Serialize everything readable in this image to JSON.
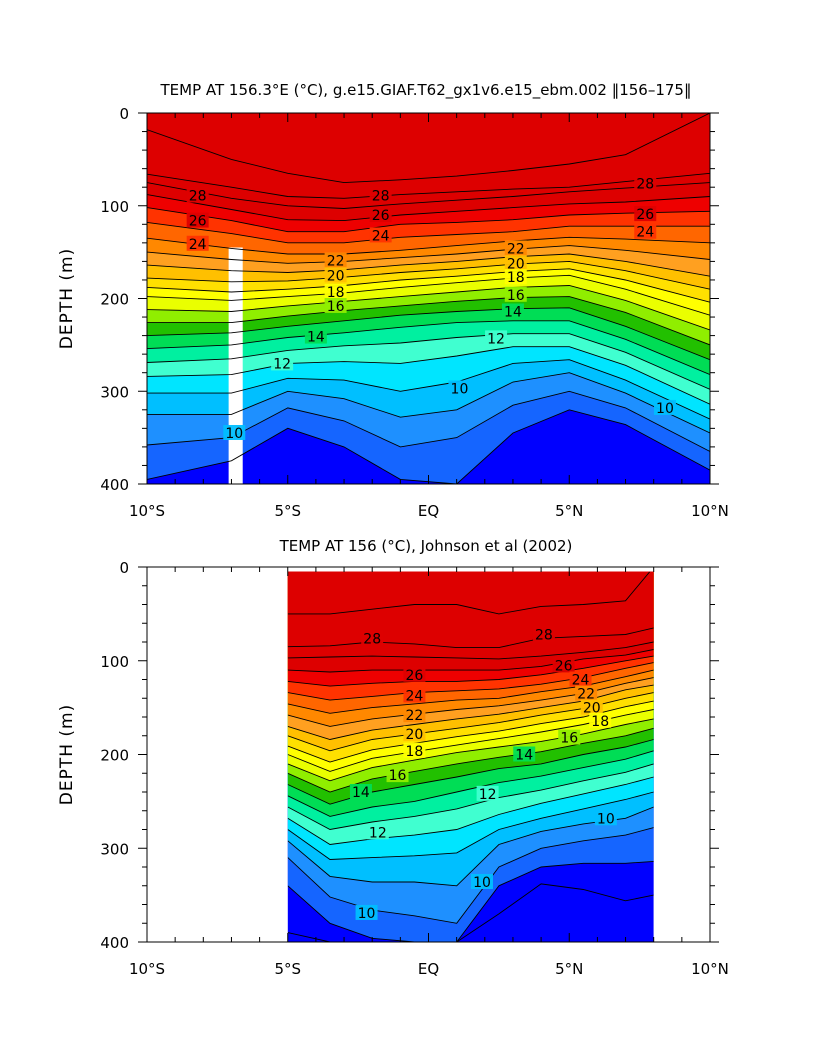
{
  "colors": {
    "bands": [
      "#0000ff",
      "#1565ff",
      "#1e90ff",
      "#00bfff",
      "#00e5ff",
      "#40ffd0",
      "#00f0a0",
      "#00dd55",
      "#22c000",
      "#90ee00",
      "#eaff00",
      "#ffff00",
      "#ffe000",
      "#ffc000",
      "#ffa020",
      "#ff8800",
      "#ff6600",
      "#ff3300",
      "#ee0000",
      "#dd0000"
    ],
    "gap": "#ffffff",
    "line": "#000000"
  },
  "chart_data": [
    {
      "type": "contour",
      "title": "TEMP AT 156.3°E (°C), g.e15.GIAF.T62_gx1v6.e15_ebm.002 ‖156–175‖",
      "ylabel": "DEPTH (m)",
      "xlim": [
        -10,
        10
      ],
      "ylim": [
        400,
        0
      ],
      "x_ticks": [
        -10,
        -5,
        0,
        5,
        10
      ],
      "x_tick_labels": [
        "10°S",
        "5°S",
        "EQ",
        "5°N",
        "10°N"
      ],
      "y_ticks": [
        0,
        100,
        200,
        300,
        400
      ],
      "y_tick_labels": [
        "0",
        "100",
        "200",
        "300",
        "400"
      ],
      "data_xrange": [
        -10,
        10
      ],
      "gap_x": [
        -7.1,
        -6.6
      ],
      "gap_depth_top": 145,
      "levels": [
        7,
        8,
        9,
        10,
        11,
        12,
        13,
        14,
        15,
        16,
        17,
        18,
        19,
        20,
        21,
        22,
        23,
        24,
        25,
        26,
        27,
        28,
        29
      ],
      "x": [
        -10,
        -7,
        -5,
        -3,
        -1,
        1,
        3,
        5,
        7,
        10
      ],
      "isotherms": [
        {
          "temp": 29,
          "depth": [
            18,
            50,
            65,
            75,
            72,
            68,
            62,
            55,
            45,
            0
          ]
        },
        {
          "temp": 28,
          "depth": [
            66,
            80,
            90,
            92,
            88,
            85,
            82,
            80,
            74,
            65
          ]
        },
        {
          "temp": 27,
          "depth": [
            75,
            92,
            100,
            103,
            98,
            94,
            90,
            85,
            81,
            75
          ]
        },
        {
          "temp": 26,
          "depth": [
            88,
            104,
            115,
            116,
            110,
            106,
            102,
            98,
            96,
            90
          ]
        },
        {
          "temp": 25,
          "depth": [
            102,
            116,
            128,
            128,
            120,
            118,
            115,
            110,
            108,
            106
          ]
        },
        {
          "temp": 24,
          "depth": [
            118,
            130,
            140,
            140,
            134,
            131,
            128,
            122,
            122,
            122
          ]
        },
        {
          "temp": 23,
          "depth": [
            135,
            146,
            152,
            152,
            148,
            143,
            138,
            134,
            136,
            140
          ]
        },
        {
          "temp": 22,
          "depth": [
            150,
            158,
            162,
            160,
            156,
            152,
            147,
            143,
            148,
            158
          ]
        },
        {
          "temp": 21,
          "depth": [
            164,
            170,
            172,
            169,
            164,
            160,
            155,
            152,
            160,
            176
          ]
        },
        {
          "temp": 20,
          "depth": [
            178,
            182,
            181,
            177,
            172,
            168,
            163,
            160,
            170,
            190
          ]
        },
        {
          "temp": 19,
          "depth": [
            188,
            193,
            190,
            186,
            180,
            176,
            171,
            168,
            180,
            204
          ]
        },
        {
          "temp": 18,
          "depth": [
            198,
            202,
            198,
            194,
            188,
            183,
            178,
            175,
            190,
            218
          ]
        },
        {
          "temp": 17,
          "depth": [
            212,
            214,
            208,
            203,
            198,
            193,
            188,
            186,
            202,
            234
          ]
        },
        {
          "temp": 16,
          "depth": [
            226,
            226,
            219,
            213,
            208,
            203,
            199,
            198,
            215,
            250
          ]
        },
        {
          "temp": 15,
          "depth": [
            240,
            237,
            230,
            224,
            218,
            214,
            211,
            210,
            230,
            266
          ]
        },
        {
          "temp": 14,
          "depth": [
            254,
            250,
            242,
            237,
            231,
            226,
            224,
            224,
            244,
            282
          ]
        },
        {
          "temp": 13,
          "depth": [
            269,
            265,
            256,
            251,
            248,
            242,
            238,
            238,
            258,
            298
          ]
        },
        {
          "temp": 12,
          "depth": [
            284,
            282,
            270,
            268,
            270,
            262,
            252,
            252,
            272,
            314
          ]
        },
        {
          "temp": 11,
          "depth": [
            302,
            302,
            286,
            288,
            300,
            290,
            270,
            266,
            288,
            330
          ]
        },
        {
          "temp": 10,
          "depth": [
            325,
            325,
            300,
            308,
            328,
            320,
            290,
            280,
            302,
            345
          ]
        },
        {
          "temp": 9,
          "depth": [
            358,
            350,
            318,
            332,
            360,
            350,
            315,
            300,
            318,
            365
          ]
        },
        {
          "temp": 8,
          "depth": [
            395,
            375,
            340,
            360,
            395,
            400,
            345,
            320,
            336,
            385
          ]
        }
      ],
      "labels": [
        {
          "text": "28",
          "x": -8.2,
          "depth": 89
        },
        {
          "text": "28",
          "x": -1.7,
          "depth": 89
        },
        {
          "text": "28",
          "x": 7.7,
          "depth": 76
        },
        {
          "text": "26",
          "x": -8.2,
          "depth": 116
        },
        {
          "text": "26",
          "x": -1.7,
          "depth": 110
        },
        {
          "text": "26",
          "x": 7.7,
          "depth": 109
        },
        {
          "text": "24",
          "x": -8.2,
          "depth": 141
        },
        {
          "text": "24",
          "x": -1.7,
          "depth": 132
        },
        {
          "text": "24",
          "x": 7.7,
          "depth": 128
        },
        {
          "text": "22",
          "x": -3.3,
          "depth": 159
        },
        {
          "text": "22",
          "x": 3.1,
          "depth": 146
        },
        {
          "text": "20",
          "x": -3.3,
          "depth": 175
        },
        {
          "text": "20",
          "x": 3.1,
          "depth": 162
        },
        {
          "text": "18",
          "x": -3.3,
          "depth": 193
        },
        {
          "text": "18",
          "x": 3.1,
          "depth": 177
        },
        {
          "text": "16",
          "x": -3.3,
          "depth": 208
        },
        {
          "text": "16",
          "x": 3.1,
          "depth": 196
        },
        {
          "text": "14",
          "x": -4.0,
          "depth": 241
        },
        {
          "text": "14",
          "x": 3.0,
          "depth": 214
        },
        {
          "text": "12",
          "x": -5.2,
          "depth": 270
        },
        {
          "text": "12",
          "x": 2.4,
          "depth": 243
        },
        {
          "text": "10",
          "x": 1.1,
          "depth": 297
        },
        {
          "text": "10",
          "x": -6.9,
          "depth": 345
        },
        {
          "text": "10",
          "x": 8.4,
          "depth": 318
        }
      ]
    },
    {
      "type": "contour",
      "title": "TEMP AT 156 (°C), Johnson et al (2002)",
      "ylabel": "DEPTH (m)",
      "xlim": [
        -10,
        10
      ],
      "ylim": [
        400,
        0
      ],
      "x_ticks": [
        -10,
        -5,
        0,
        5,
        10
      ],
      "x_tick_labels": [
        "10°S",
        "5°S",
        "EQ",
        "5°N",
        "10°N"
      ],
      "y_ticks": [
        0,
        100,
        200,
        300,
        400
      ],
      "y_tick_labels": [
        "0",
        "100",
        "200",
        "300",
        "400"
      ],
      "data_xrange": [
        -5,
        8
      ],
      "data_depth_top": 5,
      "levels": [
        7,
        8,
        9,
        10,
        11,
        12,
        13,
        14,
        15,
        16,
        17,
        18,
        19,
        20,
        21,
        22,
        23,
        24,
        25,
        26,
        27,
        28,
        29
      ],
      "x": [
        -5,
        -3.5,
        -2,
        -0.5,
        1,
        2.5,
        4,
        5.5,
        7,
        8
      ],
      "isotherms": [
        {
          "temp": 29,
          "depth": [
            50,
            50,
            45,
            40,
            40,
            50,
            42,
            40,
            36,
            0
          ]
        },
        {
          "temp": 28,
          "depth": [
            85,
            84,
            80,
            82,
            86,
            86,
            76,
            74,
            72,
            65
          ]
        },
        {
          "temp": 27,
          "depth": [
            97,
            96,
            95,
            96,
            97,
            98,
            95,
            91,
            86,
            80
          ]
        },
        {
          "temp": 26,
          "depth": [
            110,
            112,
            110,
            110,
            110,
            110,
            106,
            98,
            94,
            88
          ]
        },
        {
          "temp": 25,
          "depth": [
            122,
            127,
            124,
            122,
            122,
            120,
            115,
            108,
            100,
            95
          ]
        },
        {
          "temp": 24,
          "depth": [
            134,
            142,
            138,
            134,
            132,
            130,
            125,
            118,
            108,
            102
          ]
        },
        {
          "temp": 23,
          "depth": [
            146,
            156,
            150,
            146,
            142,
            140,
            133,
            127,
            117,
            110
          ]
        },
        {
          "temp": 22,
          "depth": [
            158,
            170,
            162,
            157,
            152,
            148,
            142,
            135,
            124,
            118
          ]
        },
        {
          "temp": 21,
          "depth": [
            170,
            184,
            174,
            168,
            162,
            157,
            150,
            143,
            131,
            126
          ]
        },
        {
          "temp": 20,
          "depth": [
            180,
            196,
            184,
            178,
            172,
            166,
            158,
            151,
            140,
            134
          ]
        },
        {
          "temp": 19,
          "depth": [
            191,
            208,
            195,
            188,
            181,
            175,
            167,
            160,
            149,
            143
          ]
        },
        {
          "temp": 18,
          "depth": [
            200,
            218,
            204,
            197,
            190,
            183,
            176,
            168,
            158,
            152
          ]
        },
        {
          "temp": 17,
          "depth": [
            210,
            228,
            214,
            206,
            198,
            192,
            186,
            178,
            168,
            162
          ]
        },
        {
          "temp": 16,
          "depth": [
            220,
            240,
            226,
            218,
            210,
            203,
            197,
            188,
            180,
            172
          ]
        },
        {
          "temp": 15,
          "depth": [
            232,
            253,
            240,
            232,
            224,
            215,
            210,
            200,
            192,
            184
          ]
        },
        {
          "temp": 14,
          "depth": [
            244,
            266,
            256,
            250,
            240,
            230,
            223,
            214,
            205,
            196
          ]
        },
        {
          "temp": 13,
          "depth": [
            256,
            280,
            272,
            266,
            258,
            246,
            238,
            228,
            219,
            210
          ]
        },
        {
          "temp": 12,
          "depth": [
            268,
            296,
            290,
            286,
            280,
            264,
            252,
            242,
            232,
            224
          ]
        },
        {
          "temp": 11,
          "depth": [
            280,
            312,
            310,
            308,
            305,
            280,
            268,
            258,
            248,
            240
          ]
        },
        {
          "temp": 10,
          "depth": [
            292,
            330,
            336,
            336,
            340,
            296,
            282,
            274,
            268,
            256
          ]
        },
        {
          "temp": 9,
          "depth": [
            310,
            352,
            366,
            372,
            380,
            320,
            300,
            292,
            286,
            278
          ]
        },
        {
          "temp": 8,
          "depth": [
            340,
            380,
            396,
            400,
            400,
            340,
            320,
            316,
            316,
            314
          ]
        },
        {
          "temp": 7,
          "depth": [
            390,
            400,
            400,
            400,
            400,
            370,
            338,
            344,
            356,
            350
          ]
        }
      ],
      "labels": [
        {
          "text": "28",
          "x": -2.0,
          "depth": 76
        },
        {
          "text": "28",
          "x": 4.1,
          "depth": 72
        },
        {
          "text": "26",
          "x": -0.5,
          "depth": 115
        },
        {
          "text": "26",
          "x": 4.8,
          "depth": 105
        },
        {
          "text": "24",
          "x": -0.5,
          "depth": 137
        },
        {
          "text": "24",
          "x": 5.4,
          "depth": 120
        },
        {
          "text": "22",
          "x": -0.5,
          "depth": 158
        },
        {
          "text": "22",
          "x": 5.6,
          "depth": 135
        },
        {
          "text": "20",
          "x": -0.5,
          "depth": 178
        },
        {
          "text": "20",
          "x": 5.8,
          "depth": 150
        },
        {
          "text": "18",
          "x": -0.5,
          "depth": 196
        },
        {
          "text": "18",
          "x": 6.1,
          "depth": 164
        },
        {
          "text": "16",
          "x": -1.1,
          "depth": 222
        },
        {
          "text": "16",
          "x": 5.0,
          "depth": 182
        },
        {
          "text": "14",
          "x": -2.4,
          "depth": 240
        },
        {
          "text": "14",
          "x": 3.4,
          "depth": 200
        },
        {
          "text": "12",
          "x": -1.8,
          "depth": 283
        },
        {
          "text": "12",
          "x": 2.1,
          "depth": 242
        },
        {
          "text": "10",
          "x": -2.2,
          "depth": 369
        },
        {
          "text": "10",
          "x": 1.9,
          "depth": 336
        },
        {
          "text": "10",
          "x": 6.3,
          "depth": 268
        }
      ]
    }
  ]
}
